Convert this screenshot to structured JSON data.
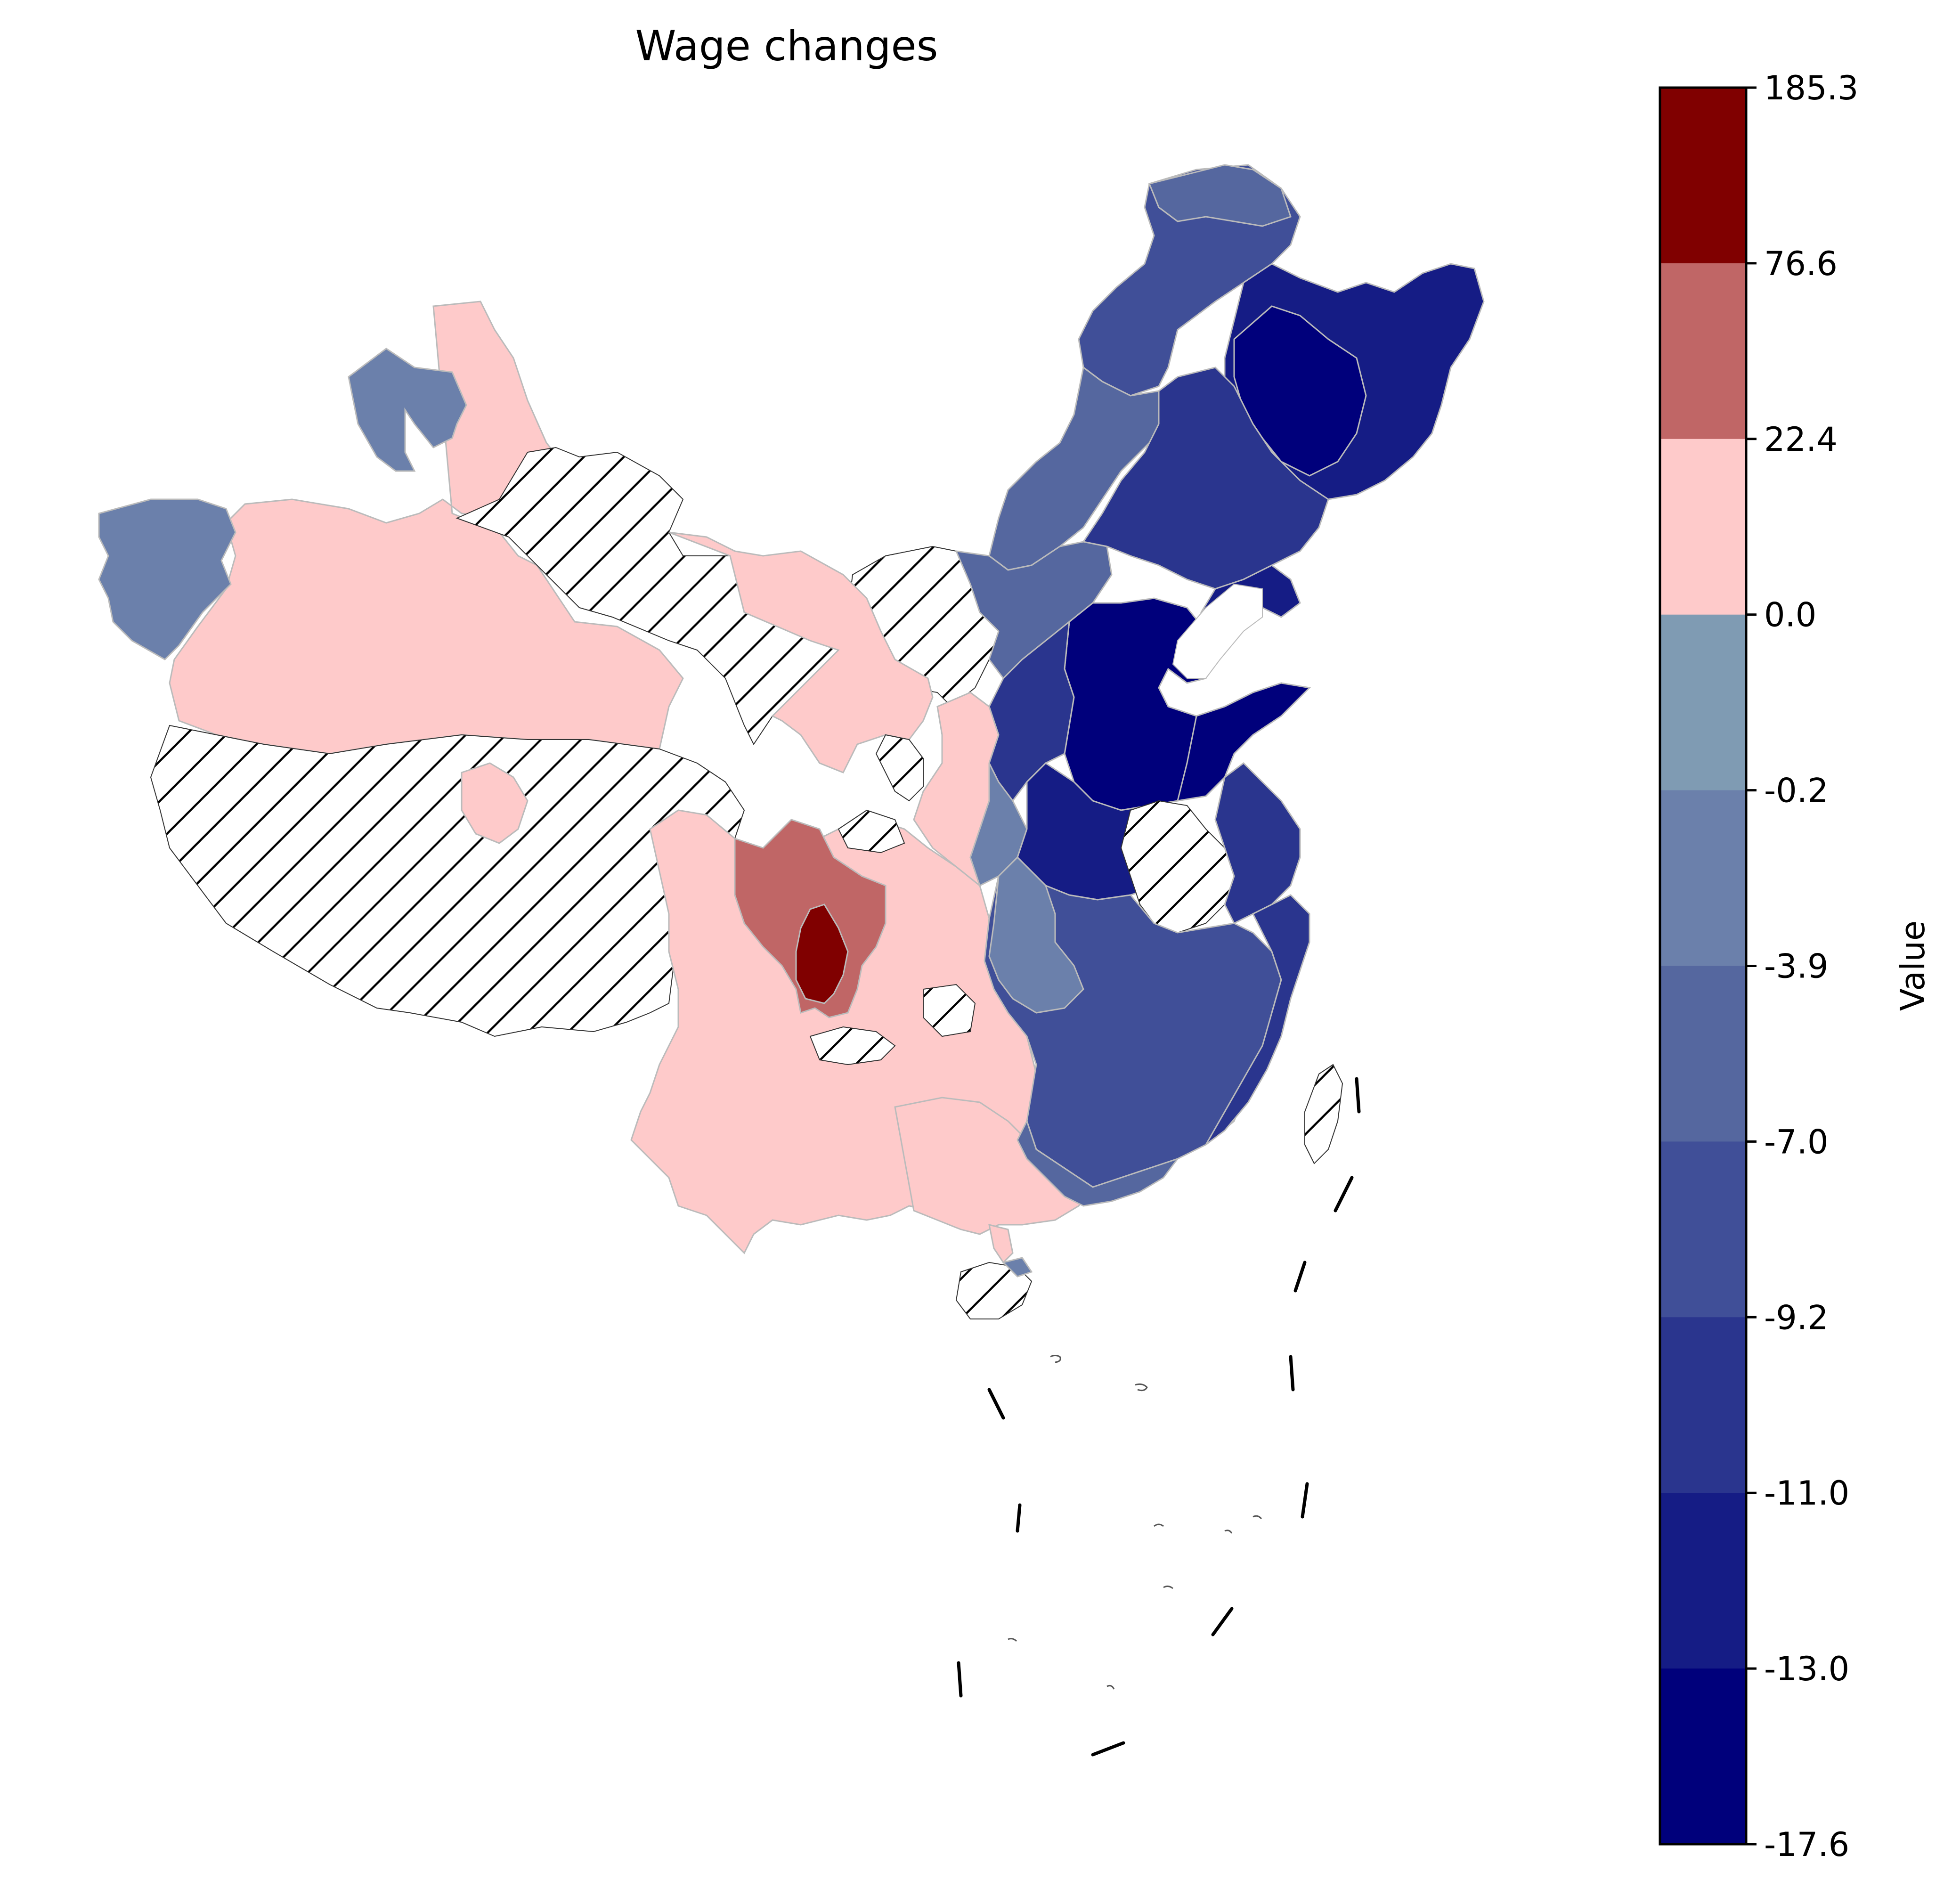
{
  "title": "Wage changes",
  "colorbar": {
    "label": "Value",
    "ticks": [
      "185.3",
      "76.6",
      "22.4",
      "0.0",
      "-0.2",
      "-3.9",
      "-7.0",
      "-9.2",
      "-11.0",
      "-13.0",
      "-17.6"
    ],
    "colors": [
      "#800000",
      "#c06666",
      "#fecaca",
      "#7f9bb3",
      "#6b80ab",
      "#55679f",
      "#404f98",
      "#2a358e",
      "#151c85",
      "#00007b"
    ]
  },
  "legend_meaning": {
    "hatched": "no data"
  }
}
